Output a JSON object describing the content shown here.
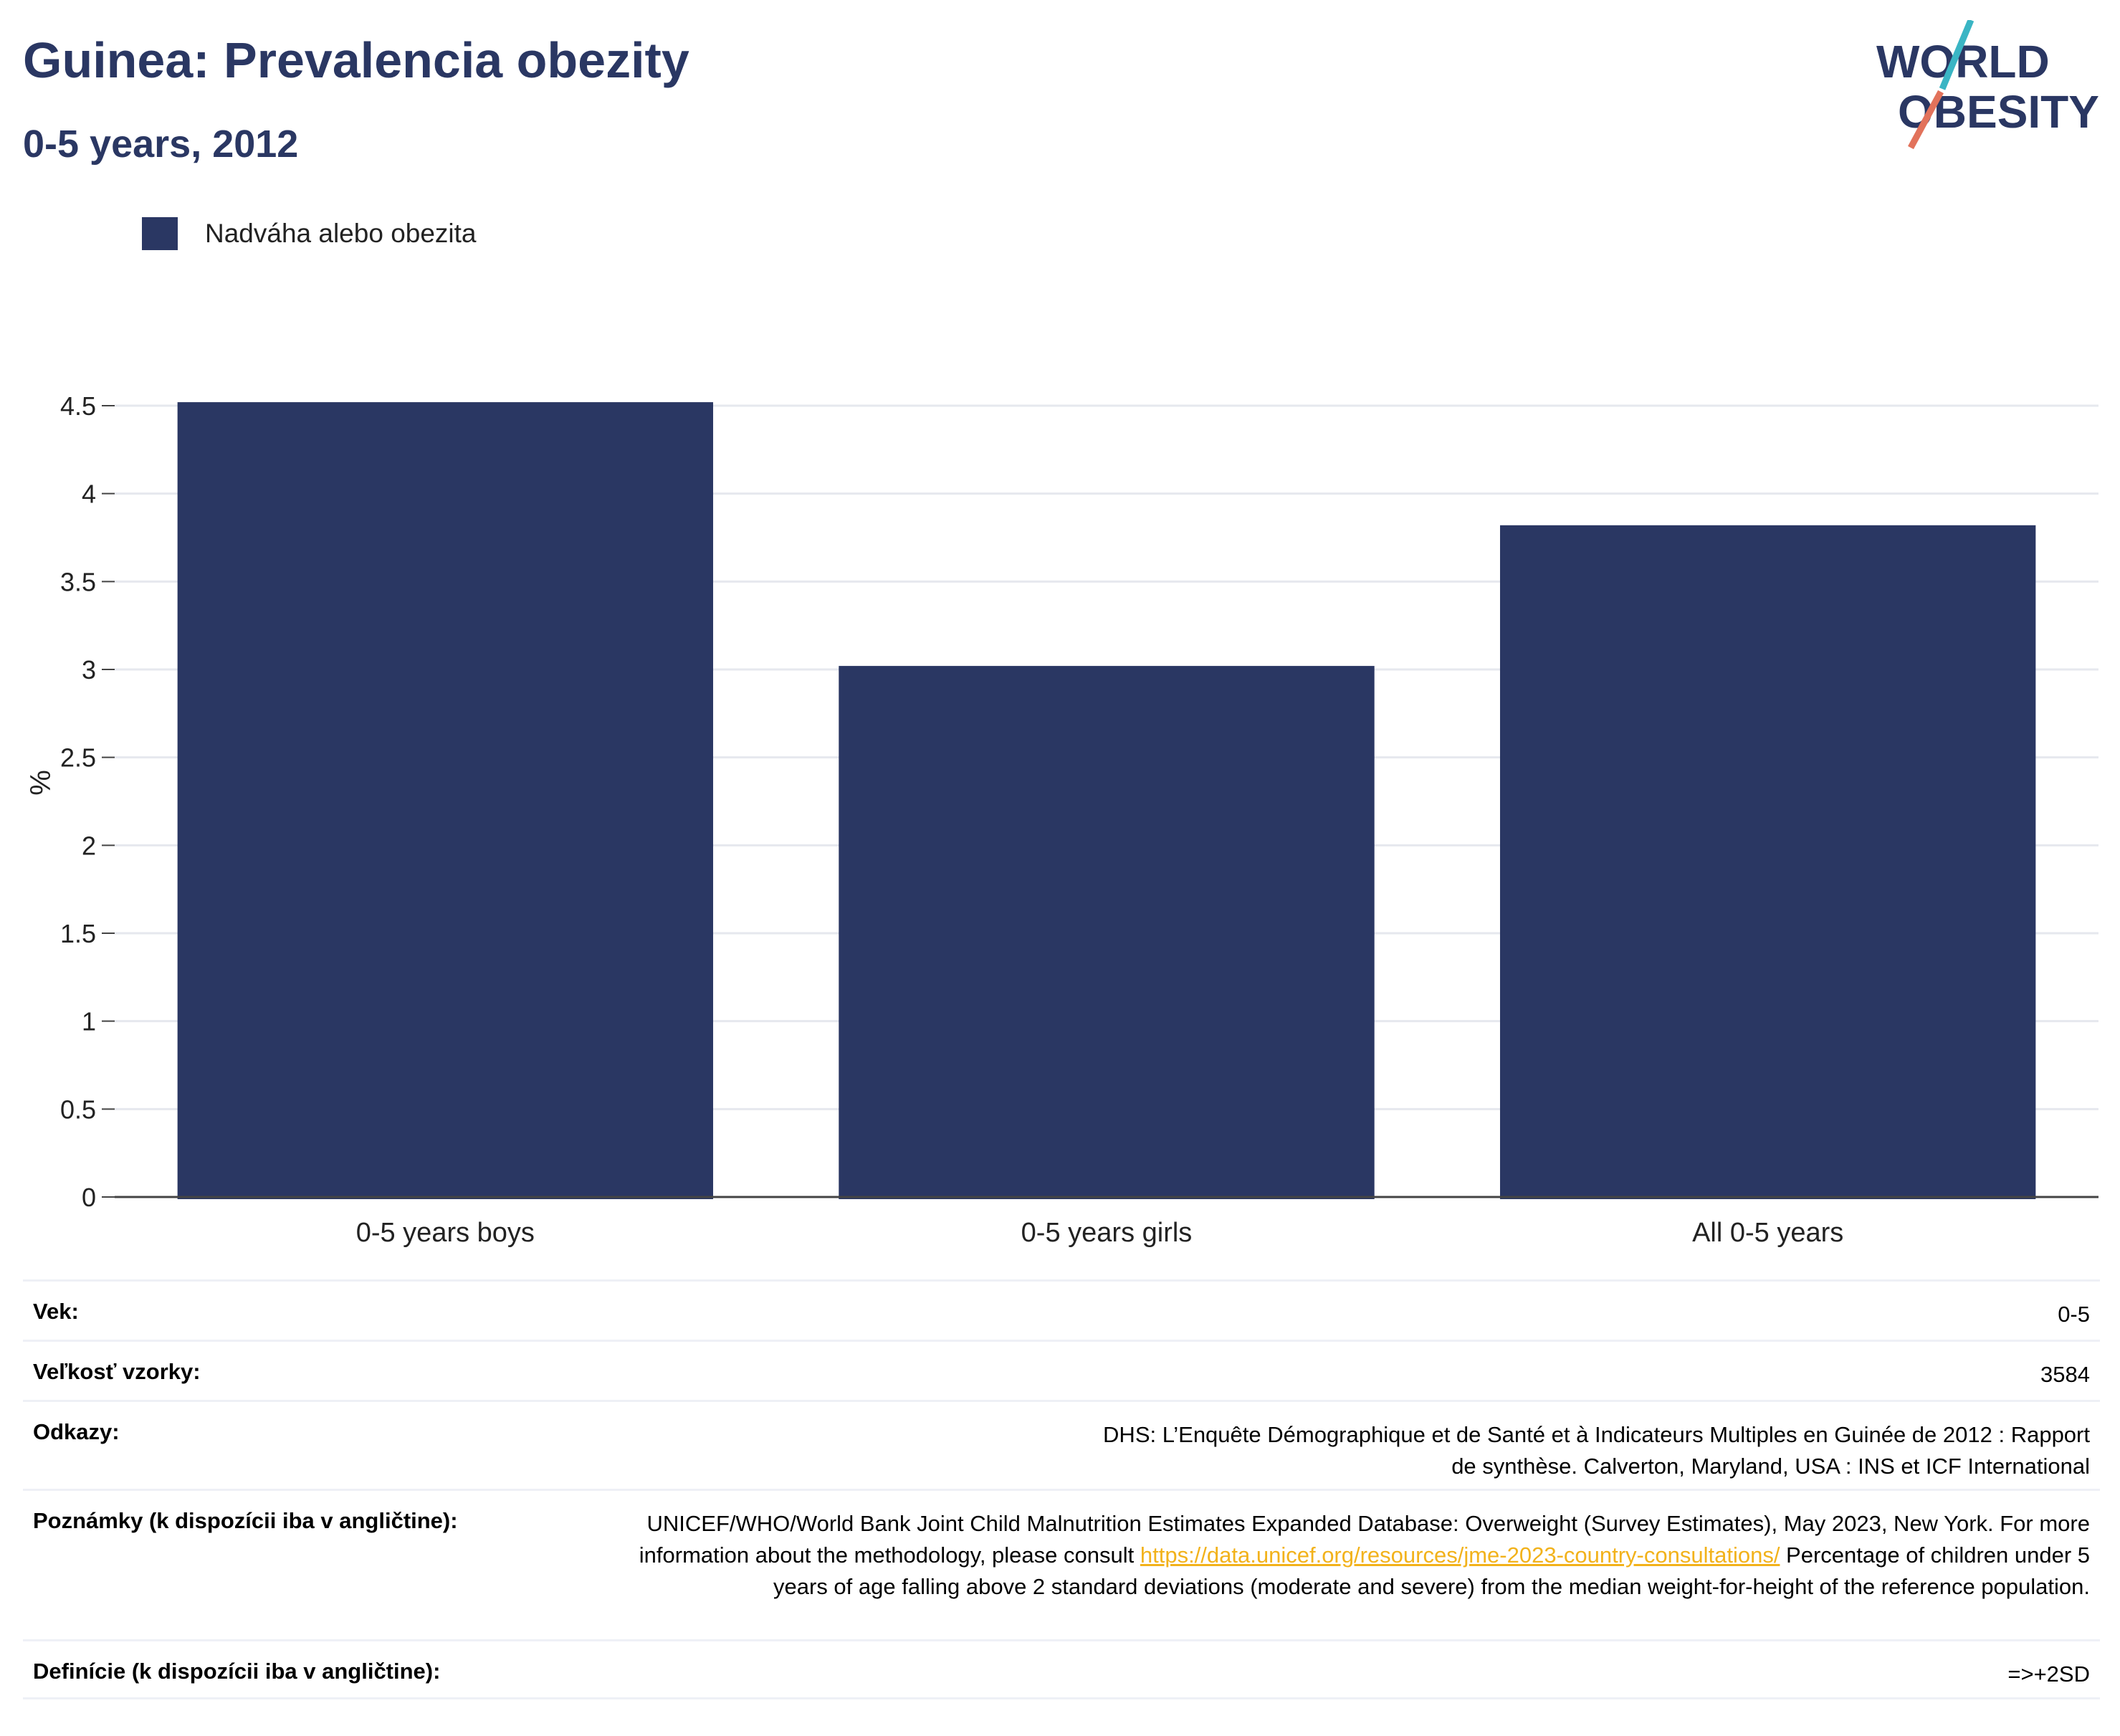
{
  "title": "Guinea: Prevalencia obezity",
  "subtitle": "0-5 years, 2012",
  "logo": {
    "line1": "WORLD",
    "line2": "OBESITY",
    "colors": {
      "slash_top": "#3ab5c4",
      "slash_bottom": "#e2725b",
      "text": "#2a3763"
    }
  },
  "colors": {
    "bar": "#2a3763",
    "grid": "#e6e8ee",
    "axis": "#444444"
  },
  "chart_data": {
    "type": "bar",
    "categories": [
      "0-5 years boys",
      "0-5 years girls",
      "All 0-5 years"
    ],
    "series": [
      {
        "name": "Nadváha alebo obezita",
        "values": [
          4.52,
          3.02,
          3.82
        ]
      }
    ],
    "ylabel": "%",
    "xlabel": "",
    "ylim": [
      0,
      4.5
    ],
    "yticks": [
      "0",
      "0.5",
      "1",
      "1.5",
      "2",
      "2.5",
      "3",
      "3.5",
      "4",
      "4.5"
    ],
    "grid": true,
    "legend": "top-left"
  },
  "meta": {
    "age_label": "Vek:",
    "age_value": "0-5",
    "sample_label": "Veľkosť vzorky:",
    "sample_value": "3584",
    "refs_label": "Odkazy:",
    "refs_value": "DHS: L’Enquête Démographique et de Santé et à Indicateurs Multiples en Guinée de 2012 : Rapport de synthèse. Calverton, Maryland, USA : INS et ICF International",
    "notes_label": "Poznámky (k dispozícii iba v angličtine):",
    "notes_before": "UNICEF/WHO/World Bank Joint Child Malnutrition Estimates Expanded Database: Overweight (Survey Estimates), May 2023, New York. For more information about the methodology, please consult ",
    "notes_link": "https://data.unicef.org/resources/jme-2023-country-consultations/",
    "notes_after": " Percentage of children under 5 years of age falling above 2 standard deviations (moderate and severe) from the median weight-for-height of the reference population.",
    "defs_label": "Definície (k dispozícii iba v angličtine):",
    "defs_value": "=>+2SD"
  }
}
